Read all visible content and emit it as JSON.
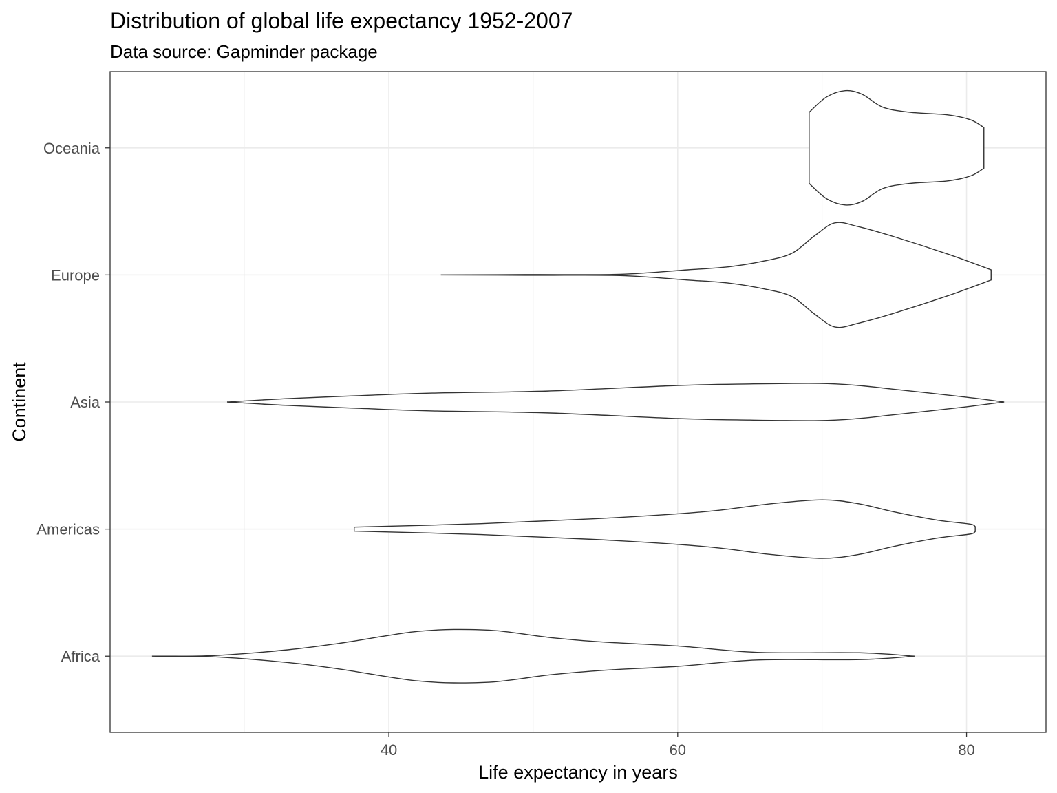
{
  "chart_data": {
    "type": "violin",
    "title": "Distribution of global life expectancy 1952-2007",
    "subtitle": "Data source: Gapminder package",
    "xlabel": "Life expectancy in years",
    "ylabel": "Continent",
    "xlim": [
      20.7,
      85.5
    ],
    "xticks": [
      40,
      60,
      80
    ],
    "xminor": [
      30,
      50,
      70
    ],
    "categories": [
      "Africa",
      "Americas",
      "Asia",
      "Europe",
      "Oceania"
    ],
    "grid": true,
    "line_color": "#333333",
    "series": [
      {
        "name": "Africa",
        "profile": [
          [
            23.6,
            0
          ],
          [
            27.9,
            0.005
          ],
          [
            33,
            0.05
          ],
          [
            36.5,
            0.1
          ],
          [
            39.8,
            0.16
          ],
          [
            42,
            0.195
          ],
          [
            44.5,
            0.21
          ],
          [
            47.5,
            0.2
          ],
          [
            51.2,
            0.146
          ],
          [
            55,
            0.11
          ],
          [
            60,
            0.08
          ],
          [
            65.5,
            0.03
          ],
          [
            72.6,
            0.027
          ],
          [
            76.4,
            0
          ]
        ]
      },
      {
        "name": "Americas",
        "profile": [
          [
            37.6,
            0.016
          ],
          [
            46.4,
            0.043
          ],
          [
            54,
            0.08
          ],
          [
            60,
            0.12
          ],
          [
            63,
            0.15
          ],
          [
            66.5,
            0.2
          ],
          [
            70,
            0.23
          ],
          [
            72.5,
            0.2
          ],
          [
            75,
            0.135
          ],
          [
            78,
            0.07
          ],
          [
            80.2,
            0.04
          ],
          [
            80.6,
            0.02
          ]
        ]
      },
      {
        "name": "Asia",
        "profile": [
          [
            28.8,
            0
          ],
          [
            33,
            0.027
          ],
          [
            38,
            0.05
          ],
          [
            43,
            0.07
          ],
          [
            51,
            0.086
          ],
          [
            60,
            0.13
          ],
          [
            65,
            0.142
          ],
          [
            69.8,
            0.146
          ],
          [
            72.5,
            0.13
          ],
          [
            75,
            0.1
          ],
          [
            79.8,
            0.04
          ],
          [
            82.6,
            0
          ]
        ]
      },
      {
        "name": "Europe",
        "profile": [
          [
            43.6,
            0
          ],
          [
            50,
            0.003
          ],
          [
            56,
            0.005
          ],
          [
            60.7,
            0.04
          ],
          [
            63.6,
            0.065
          ],
          [
            66,
            0.11
          ],
          [
            67.9,
            0.17
          ],
          [
            69.5,
            0.31
          ],
          [
            70.9,
            0.41
          ],
          [
            72.5,
            0.38
          ],
          [
            75,
            0.3
          ],
          [
            78.8,
            0.16
          ],
          [
            81.7,
            0.04
          ]
        ]
      },
      {
        "name": "Oceania",
        "profile": [
          [
            69.1,
            0.28
          ],
          [
            70.3,
            0.4
          ],
          [
            71.6,
            0.45
          ],
          [
            72.8,
            0.42
          ],
          [
            74.2,
            0.32
          ],
          [
            76.1,
            0.28
          ],
          [
            78.7,
            0.26
          ],
          [
            80.3,
            0.22
          ],
          [
            81.2,
            0.16
          ]
        ]
      }
    ]
  }
}
